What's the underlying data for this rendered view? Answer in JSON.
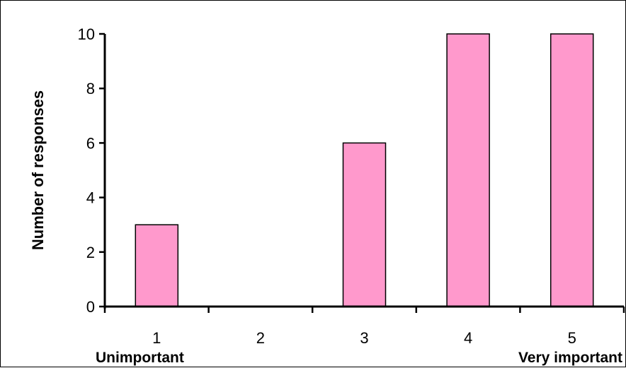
{
  "chart_data": {
    "type": "bar",
    "categories": [
      "1",
      "2",
      "3",
      "4",
      "5"
    ],
    "values": [
      3,
      0,
      6,
      10,
      10
    ],
    "title": "",
    "xlabel": "",
    "ylabel": "Number of responses",
    "ylim": [
      0,
      10
    ],
    "yticks": [
      0,
      2,
      4,
      6,
      8,
      10
    ],
    "scale_labels": {
      "low": "Unimportant",
      "high": "Very important"
    },
    "grid": false,
    "legend": "none",
    "colors": {
      "bar_fill": "#ff99cc",
      "bar_stroke": "#000000",
      "axis": "#000000"
    }
  }
}
